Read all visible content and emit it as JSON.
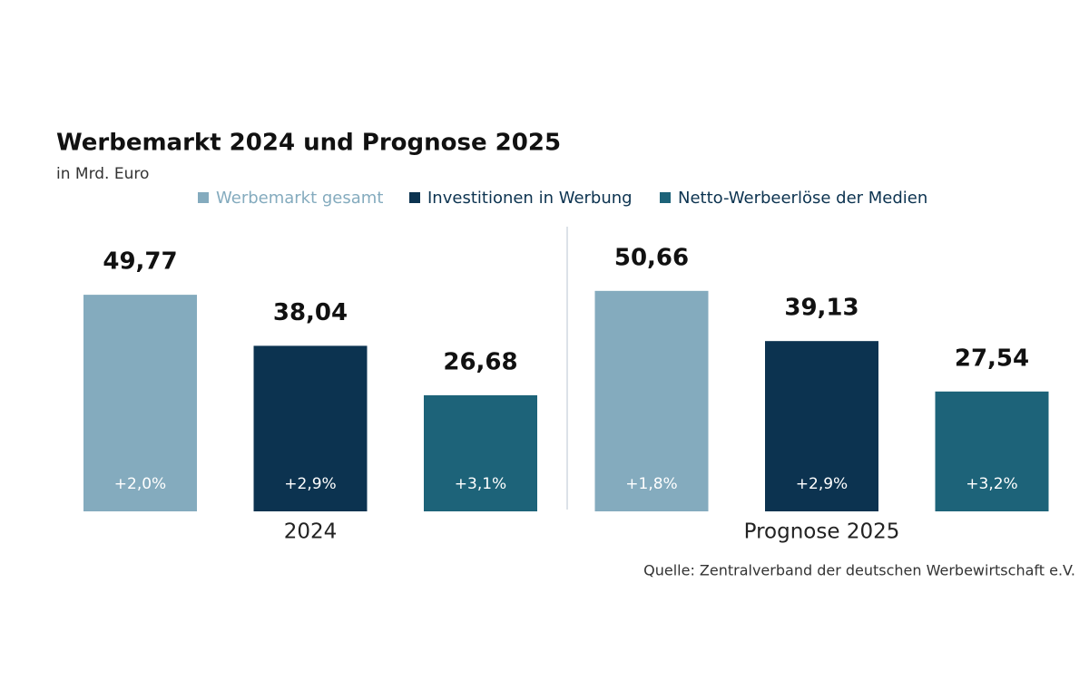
{
  "chart_data": {
    "type": "bar",
    "title": "Werbemarkt 2024 und Prognose 2025",
    "subtitle": "in Mrd. Euro",
    "categories": [
      "2024",
      "Prognose 2025"
    ],
    "series": [
      {
        "name": "Werbemarkt gesamt",
        "color": "#84abbe",
        "values": [
          49.77,
          50.66
        ],
        "value_labels": [
          "49,77",
          "50,66"
        ],
        "changes": [
          "+2,0%",
          "+1,8%"
        ]
      },
      {
        "name": "Investitionen in Werbung",
        "color": "#0c3350",
        "values": [
          38.04,
          39.13
        ],
        "value_labels": [
          "38,04",
          "39,13"
        ],
        "changes": [
          "+2,9%",
          "+2,9%"
        ]
      },
      {
        "name": "Netto-Werbeerlöse der Medien",
        "color": "#1d6379",
        "values": [
          26.68,
          27.54
        ],
        "value_labels": [
          "26,68",
          "27,54"
        ],
        "changes": [
          "+3,1%",
          "+3,2%"
        ]
      }
    ],
    "source": "Quelle: Zentralverband der deutschen Werbewirtschaft e.V."
  }
}
